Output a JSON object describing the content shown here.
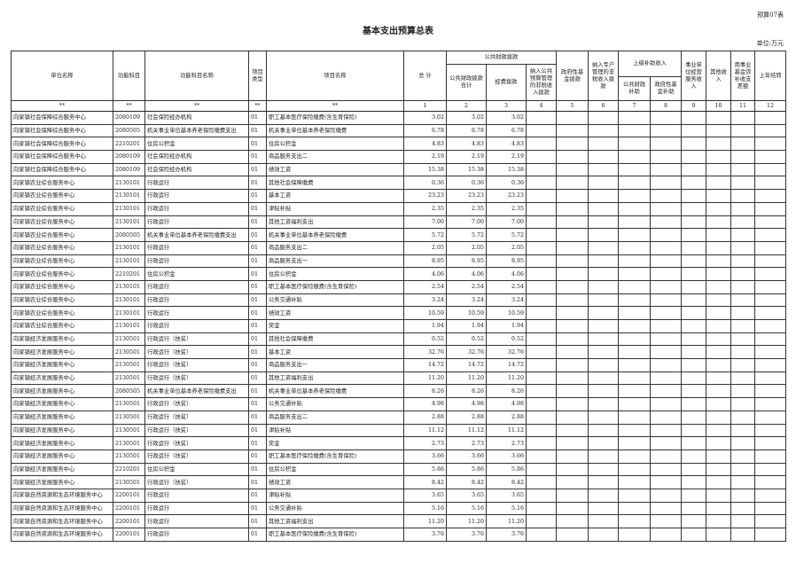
{
  "form_no": "预算07表",
  "title": "基本支出预算总表",
  "unit": "单位:万元",
  "headers": {
    "unit_name": "单位名称",
    "func_code": "功能科目",
    "func_name": "功能科目名称",
    "proj_type": "项目类型",
    "proj_name": "项目名称",
    "total": "总 计",
    "public_fin": "公共财政拨款",
    "public_fin_total": "公共财政拨款合计",
    "funding": "经费拨款",
    "nontax_budget": "纳入公共预算管理的非税收入拨款",
    "gov_fund": "政府性基金拨款",
    "special_nontax": "纳入专户管理的非税收入拨款",
    "superior": "上级补助收入",
    "superior_public": "公共财政补助",
    "superior_gov": "政府性基金补助",
    "business_income": "事业单位经营服务收入",
    "other_income": "其他收入",
    "fund_offset": "用事业基金弥补收支差额",
    "carryover": "上年结转"
  },
  "index_row": [
    "**",
    "**",
    "**",
    "**",
    "**",
    "1",
    "2",
    "3",
    "4",
    "5",
    "6",
    "7",
    "8",
    "9",
    "10",
    "11",
    "12"
  ],
  "rows": [
    [
      "向家镇社会保障综合服务中心",
      "2080109",
      "社会保险经办机构",
      "01",
      "职工基本医疗保险缴费(含生育保险)",
      "3.02",
      "3.02",
      "3.02"
    ],
    [
      "向家镇社会保障综合服务中心",
      "2080505",
      "机关事业单位基本养老保险缴费支出",
      "01",
      "机关事业单位基本养老保险缴费",
      "6.78",
      "6.78",
      "6.78"
    ],
    [
      "向家镇社会保障综合服务中心",
      "2210201",
      "住房公积金",
      "01",
      "住房公积金",
      "4.83",
      "4.83",
      "4.83"
    ],
    [
      "向家镇社会保障综合服务中心",
      "2080109",
      "社会保险经办机构",
      "01",
      "商品服务支出二",
      "2.19",
      "2.19",
      "2.19"
    ],
    [
      "向家镇社会保障综合服务中心",
      "2080109",
      "社会保险经办机构",
      "01",
      "绩效工资",
      "15.38",
      "15.38",
      "15.38"
    ],
    [
      "向家镇农业综合服务中心",
      "2130101",
      "行政运行",
      "01",
      "其他社会保障缴费",
      "0.36",
      "0.36",
      "0.36"
    ],
    [
      "向家镇农业综合服务中心",
      "2130101",
      "行政运行",
      "01",
      "基本工资",
      "23.23",
      "23.23",
      "23.23"
    ],
    [
      "向家镇农业综合服务中心",
      "2130101",
      "行政运行",
      "01",
      "津贴补贴",
      "2.35",
      "2.35",
      "2.35"
    ],
    [
      "向家镇农业综合服务中心",
      "2130101",
      "行政运行",
      "01",
      "其他工资福利支出",
      "7.00",
      "7.00",
      "7.00"
    ],
    [
      "向家镇农业综合服务中心",
      "2080505",
      "机关事业单位基本养老保险缴费支出",
      "01",
      "机关事业单位基本养老保险缴费",
      "5.72",
      "5.72",
      "5.72"
    ],
    [
      "向家镇农业综合服务中心",
      "2130101",
      "行政运行",
      "01",
      "商品服务支出二",
      "2.05",
      "2.05",
      "2.05"
    ],
    [
      "向家镇农业综合服务中心",
      "2130101",
      "行政运行",
      "01",
      "商品服务支出一",
      "8.95",
      "8.95",
      "8.95"
    ],
    [
      "向家镇农业综合服务中心",
      "2210201",
      "住房公积金",
      "01",
      "住房公积金",
      "4.06",
      "4.06",
      "4.06"
    ],
    [
      "向家镇农业综合服务中心",
      "2130101",
      "行政运行",
      "01",
      "职工基本医疗保险缴费(含生育保险)",
      "2.54",
      "2.54",
      "2.54"
    ],
    [
      "向家镇农业综合服务中心",
      "2130101",
      "行政运行",
      "01",
      "公务交通补贴",
      "3.24",
      "3.24",
      "3.24"
    ],
    [
      "向家镇农业综合服务中心",
      "2130101",
      "行政运行",
      "01",
      "绩效工资",
      "10.59",
      "10.59",
      "10.59"
    ],
    [
      "向家镇农业综合服务中心",
      "2130101",
      "行政运行",
      "01",
      "奖金",
      "1.94",
      "1.94",
      "1.94"
    ],
    [
      "向家镇经济发展服务中心",
      "2130501",
      "行政运行（扶贫）",
      "01",
      "其他社会保障缴费",
      "0.52",
      "0.52",
      "0.52"
    ],
    [
      "向家镇经济发展服务中心",
      "2130501",
      "行政运行（扶贫）",
      "01",
      "基本工资",
      "32.76",
      "32.76",
      "32.76"
    ],
    [
      "向家镇经济发展服务中心",
      "2130501",
      "行政运行（扶贫）",
      "01",
      "商品服务支出一",
      "14.72",
      "14.72",
      "14.72"
    ],
    [
      "向家镇经济发展服务中心",
      "2130501",
      "行政运行（扶贫）",
      "01",
      "其他工资福利支出",
      "11.20",
      "11.20",
      "11.20"
    ],
    [
      "向家镇经济发展服务中心",
      "2080505",
      "机关事业单位基本养老保险缴费支出",
      "01",
      "机关事业单位基本养老保险缴费",
      "8.26",
      "8.26",
      "8.26"
    ],
    [
      "向家镇经济发展服务中心",
      "2130501",
      "行政运行（扶贫）",
      "01",
      "公务交通补贴",
      "4.98",
      "4.98",
      "4.98"
    ],
    [
      "向家镇经济发展服务中心",
      "2130501",
      "行政运行（扶贫）",
      "01",
      "商品服务支出二",
      "2.88",
      "2.88",
      "2.88"
    ],
    [
      "向家镇经济发展服务中心",
      "2130501",
      "行政运行（扶贫）",
      "01",
      "津贴补贴",
      "11.12",
      "11.12",
      "11.12"
    ],
    [
      "向家镇经济发展服务中心",
      "2130501",
      "行政运行（扶贫）",
      "01",
      "奖金",
      "2.73",
      "2.73",
      "2.73"
    ],
    [
      "向家镇经济发展服务中心",
      "2130501",
      "行政运行（扶贫）",
      "01",
      "职工基本医疗保险缴费(含生育保险)",
      "3.66",
      "3.66",
      "3.66"
    ],
    [
      "向家镇经济发展服务中心",
      "2210201",
      "住房公积金",
      "01",
      "住房公积金",
      "5.86",
      "5.86",
      "5.86"
    ],
    [
      "向家镇经济发展服务中心",
      "2130501",
      "行政运行（扶贫）",
      "01",
      "绩效工资",
      "8.42",
      "8.42",
      "8.42"
    ],
    [
      "向家镇自然资源和生态环境服务中心",
      "2200101",
      "行政运行",
      "01",
      "津贴补贴",
      "3.65",
      "3.65",
      "3.65"
    ],
    [
      "向家镇自然资源和生态环境服务中心",
      "2200101",
      "行政运行",
      "01",
      "公务交通补贴",
      "5.16",
      "5.16",
      "5.16"
    ],
    [
      "向家镇自然资源和生态环境服务中心",
      "2200101",
      "行政运行",
      "01",
      "其他工资福利支出",
      "11.20",
      "11.20",
      "11.20"
    ],
    [
      "向家镇自然资源和生态环境服务中心",
      "2200101",
      "行政运行",
      "01",
      "职工基本医疗保险缴费(含生育保险)",
      "3.76",
      "3.76",
      "3.76"
    ]
  ]
}
